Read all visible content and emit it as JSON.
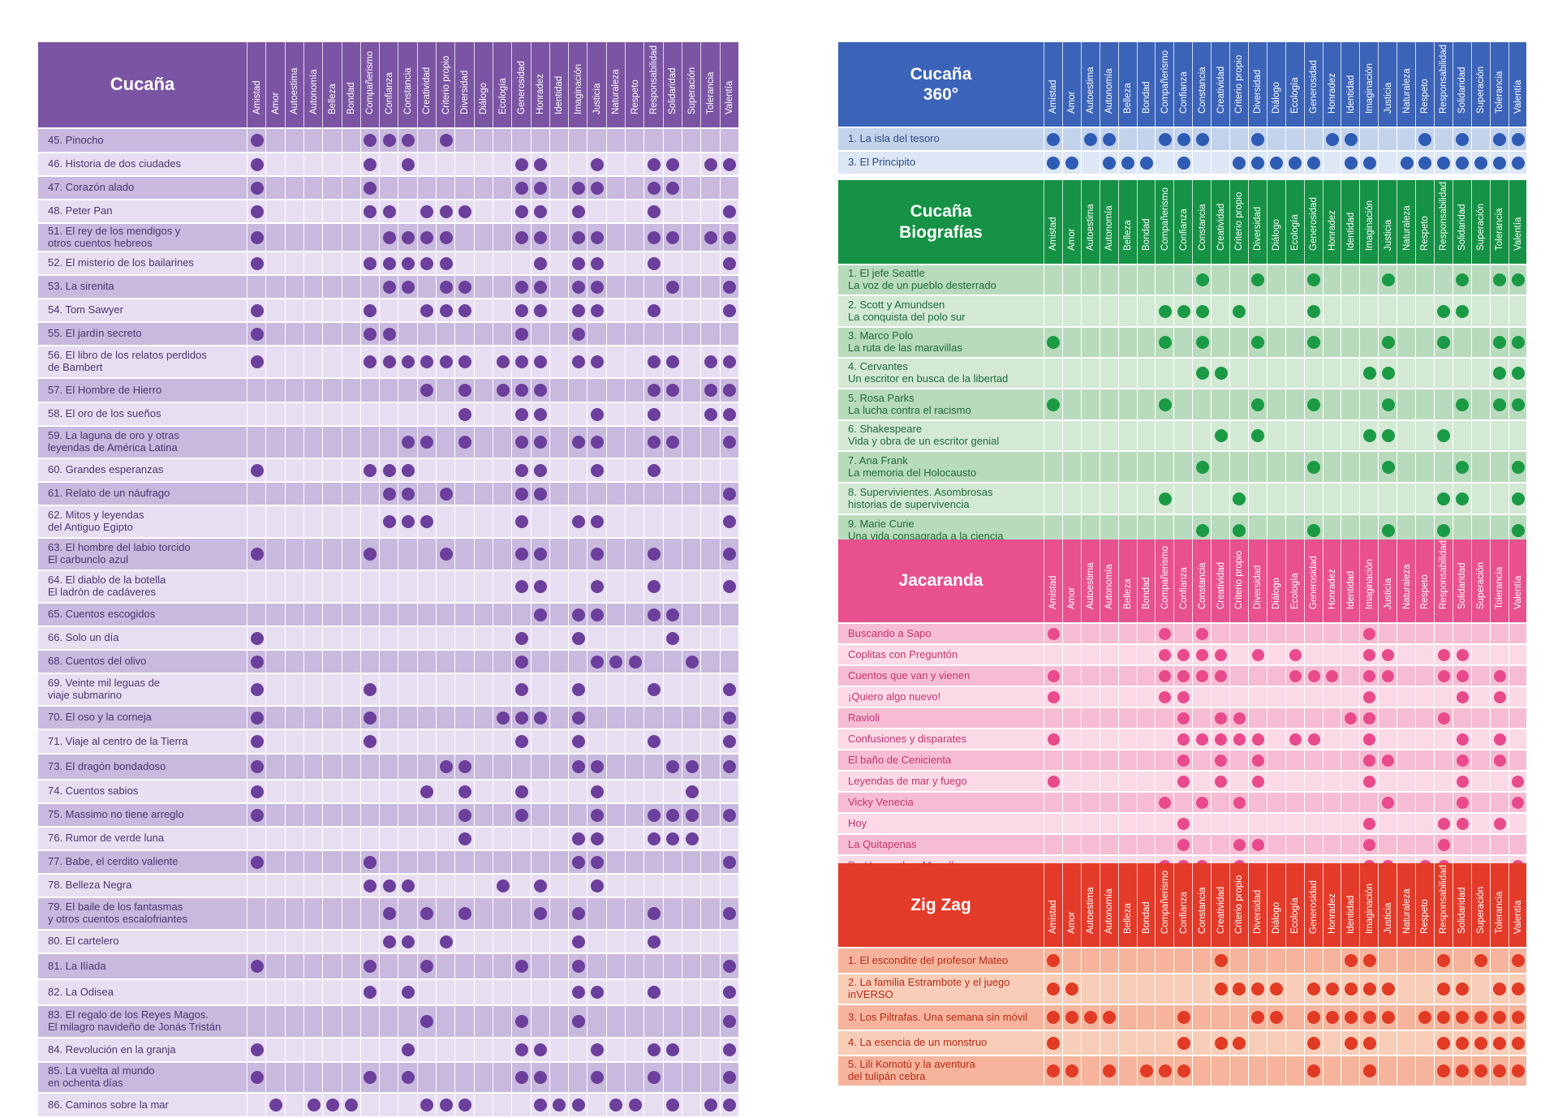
{
  "columns": [
    "Amistad",
    "Amor",
    "Autoestima",
    "Autonomía",
    "Belleza",
    "Bondad",
    "Compañerismo",
    "Confianza",
    "Constancia",
    "Creatividad",
    "Criterio propio",
    "Diversidad",
    "Diálogo",
    "Ecología",
    "Generosidad",
    "Honradez",
    "Identidad",
    "Imaginación",
    "Justicia",
    "Naturaleza",
    "Respeto",
    "Responsabilidad",
    "Solidaridad",
    "Superación",
    "Tolerancia",
    "Valentía"
  ],
  "tables": [
    {
      "id": "cucana",
      "title": "Cucaña",
      "colors": {
        "header": "#7b55a3",
        "dot": "#6b3f9b",
        "text": "#4a3470",
        "row_a": "#c9b9de",
        "row_b": "#e8def2"
      },
      "rows": [
        {
          "lines": [
            "45. Pinocho"
          ],
          "marks": "10000011101000000000000000"
        },
        {
          "lines": [
            "46. Historia de dos ciudades"
          ],
          "marks": "10000010100000110010011011"
        },
        {
          "lines": [
            "47. Corazón alado"
          ],
          "marks": "10000010000000110110011000"
        },
        {
          "lines": [
            "48. Peter Pan"
          ],
          "marks": "10000011011100110100010001"
        },
        {
          "lines": [
            "51. El rey de los mendigos y",
            "otros cuentos hebreos"
          ],
          "marks": "10000001111000110110011011"
        },
        {
          "lines": [
            "52. El misterio de los bailarines"
          ],
          "marks": "10000011111000010110010001"
        },
        {
          "lines": [
            "53. La sirenita"
          ],
          "marks": "00000001101100110110001001"
        },
        {
          "lines": [
            "54. Tom Sawyer"
          ],
          "marks": "10000010011100110110010001"
        },
        {
          "lines": [
            "55. El jardín secreto"
          ],
          "marks": "10000011000000100100000000"
        },
        {
          "lines": [
            "56. El libro de los relatos perdidos",
            "de Bambert"
          ],
          "marks": "10000011111101110110011011"
        },
        {
          "lines": [
            "57. El Hombre de Hierro"
          ],
          "marks": "00000000010101110000011011"
        },
        {
          "lines": [
            "58. El oro de los sueños"
          ],
          "marks": "00000000000100110010010011"
        },
        {
          "lines": [
            "59. La laguna de oro y otras",
            "leyendas de América Latina"
          ],
          "marks": "00000000110100110110011001"
        },
        {
          "lines": [
            "60. Grandes esperanzas"
          ],
          "marks": "10000011100000110010010000"
        },
        {
          "lines": [
            "61. Relato de un náufrago"
          ],
          "marks": "00000001101000110000000001"
        },
        {
          "lines": [
            "62. Mitos y leyendas",
            "del Antiguo Egipto"
          ],
          "marks": "00000001110000100110000001"
        },
        {
          "lines": [
            "63. El hombre del labio torcido",
            "El carbunclo azul"
          ],
          "marks": "10000010001000110010010001"
        },
        {
          "lines": [
            "64. El diablo de la botella",
            "El ladrón de cadáveres"
          ],
          "marks": "00000000000000110010010001"
        },
        {
          "lines": [
            "65. Cuentos escogidos"
          ],
          "marks": "00000000000000010110011000"
        },
        {
          "lines": [
            "66. Solo un día"
          ],
          "marks": "10000000000000100100001000"
        },
        {
          "lines": [
            "68. Cuentos del olivo"
          ],
          "marks": "10000000000000100011100100"
        },
        {
          "lines": [
            "69. Veinte mil leguas de",
            "viaje submarino"
          ],
          "marks": "10000010000000100100010001"
        },
        {
          "lines": [
            "70. El oso y la corneja"
          ],
          "marks": "10000010000001110100000001"
        },
        {
          "lines": [
            "71. Viaje al centro de la Tierra"
          ],
          "marks": "10000010000000100100010001"
        },
        {
          "lines": [
            "73. El dragón bondadoso"
          ],
          "marks": "10000000001100000110001101"
        },
        {
          "lines": [
            "74. Cuentos sabios"
          ],
          "marks": "10000000010100100010000100"
        },
        {
          "lines": [
            "75. Massimo no tiene arreglo"
          ],
          "marks": "10000000000100100010011101"
        },
        {
          "lines": [
            "76. Rumor de verde luna"
          ],
          "marks": "00000000000100000110011100"
        },
        {
          "lines": [
            "77. Babe, el cerdito valiente"
          ],
          "marks": "10000010000000000110000001"
        },
        {
          "lines": [
            "78. Belleza Negra"
          ],
          "marks": "00000011100001010010000000"
        },
        {
          "lines": [
            "79. El baile de los fantasmas",
            "y otros cuentos escalofriantes"
          ],
          "marks": "00000001010100010100010001"
        },
        {
          "lines": [
            "80. El cartelero"
          ],
          "marks": "00000001101000000100010000"
        },
        {
          "lines": [
            "81. La Ilíada"
          ],
          "marks": "10000010010000100100000001"
        },
        {
          "lines": [
            "82. La Odisea"
          ],
          "marks": "00000010100000000110010001"
        },
        {
          "lines": [
            "83. El regalo de los Reyes Magos.",
            "El milagro navideño de Jonás Tristán"
          ],
          "marks": "00000000010000100100000001"
        },
        {
          "lines": [
            "84. Revolución en la granja"
          ],
          "marks": "10000000100000110010011001"
        },
        {
          "lines": [
            "85. La vuelta al mundo",
            "en ochenta días"
          ],
          "marks": "10000010100000110010010001"
        },
        {
          "lines": [
            "86. Caminos sobre la mar"
          ],
          "marks": "01011100011100011101101011"
        }
      ]
    },
    {
      "id": "cucana360",
      "title": "Cucaña\n360°",
      "colors": {
        "header": "#3b63b8",
        "dot": "#2e5bb3",
        "text": "#2b4a86",
        "row_a": "#c3d3ec",
        "row_b": "#dde7f5"
      },
      "rows": [
        {
          "lines": [
            "1. La isla del tesoro"
          ],
          "marks": "10110011100100011000101011"
        },
        {
          "lines": [
            "3. El Principito"
          ],
          "marks": "11011101001111101101111111"
        }
      ]
    },
    {
      "id": "biografias",
      "title": "Cucaña\nBiografías",
      "colors": {
        "header": "#159245",
        "dot": "#1a9a45",
        "text": "#1e6b38",
        "row_a": "#b9dbbd",
        "row_b": "#d3e9d4"
      },
      "rows": [
        {
          "lines": [
            "1. El jefe Seattle",
            "La voz de un pueblo desterrado"
          ],
          "marks": "00000000100100100010001011"
        },
        {
          "lines": [
            "2. Scott y Amundsen",
            "La conquista del polo sur"
          ],
          "marks": "00000011101000100000011000"
        },
        {
          "lines": [
            "3. Marco Polo",
            "La ruta de las maravillas"
          ],
          "marks": "10000010100100100010010011"
        },
        {
          "lines": [
            "4. Cervantes",
            "Un escritor en busca de la libertad"
          ],
          "marks": "00000000110000000110000011"
        },
        {
          "lines": [
            "5. Rosa Parks",
            "La lucha contra el racismo"
          ],
          "marks": "10000010000100100010001011"
        },
        {
          "lines": [
            "6. Shakespeare",
            "Vida y obra de un escritor genial"
          ],
          "marks": "00000000010100000110010000"
        },
        {
          "lines": [
            "7. Ana Frank",
            "La memoria del Holocausto"
          ],
          "marks": "00000000100000100010001001"
        },
        {
          "lines": [
            "8. Supervivientes. Asombrosas",
            "historias de supervivencia"
          ],
          "marks": "00000010001000000000011001"
        },
        {
          "lines": [
            "9. Marie Curie",
            "Una vida consagrada a la ciencia"
          ],
          "marks": "00000000101000100010010001"
        }
      ]
    },
    {
      "id": "jacaranda",
      "title": "Jacaranda",
      "colors": {
        "header": "#e8508e",
        "dot": "#e84a8c",
        "text": "#c23572",
        "row_a": "#f6bcd3",
        "row_b": "#fbd9e6"
      },
      "rows": [
        {
          "lines": [
            "Buscando a Sapo"
          ],
          "marks": "10000010100000000100000000"
        },
        {
          "lines": [
            "Coplitas con Preguntón"
          ],
          "marks": "00000011110101000110011000"
        },
        {
          "lines": [
            "Cuentos que van y vienen"
          ],
          "marks": "10000011110001110110011010"
        },
        {
          "lines": [
            "¡Quiero algo nuevo!"
          ],
          "marks": "10000011000000000100001010"
        },
        {
          "lines": [
            "Ravioli"
          ],
          "marks": "00000001011000001100010000"
        },
        {
          "lines": [
            "Confusiones y disparates"
          ],
          "marks": "10000001111101100100001010"
        },
        {
          "lines": [
            "El baño de Cenicienta"
          ],
          "marks": "00000001010100000110001010"
        },
        {
          "lines": [
            "Leyendas de mar y fuego"
          ],
          "marks": "10000001010100000100001001"
        },
        {
          "lines": [
            "Vicky Venecia"
          ],
          "marks": "00000010101000000010001001"
        },
        {
          "lines": [
            "Hoy"
          ],
          "marks": "00000001000000000100011010"
        },
        {
          "lines": [
            "La Quitapenas"
          ],
          "marks": "00000001001100000100010000"
        },
        {
          "lines": [
            "De Hernando a Magallanes"
          ],
          "marks": "00000011101000000110110001"
        }
      ]
    },
    {
      "id": "zigzag",
      "title": "Zig Zag",
      "colors": {
        "header": "#e33a29",
        "dot": "#e13a25",
        "text": "#b82a18",
        "row_a": "#f5b49b",
        "row_b": "#f8cdb8"
      },
      "rows": [
        {
          "lines": [
            "1. El escondite del profesor Mateo"
          ],
          "marks": "10000000010000001100010101"
        },
        {
          "lines": [
            "2. La familia Estrambote y el juego",
            "inVERSO"
          ],
          "marks": "11000000011110111110011011"
        },
        {
          "lines": [
            "3. Los Piltrafas. Una semana sin móvil"
          ],
          "marks": "11110001000110111110111111"
        },
        {
          "lines": [
            "4. La esencia de un monstruo"
          ],
          "marks": "10000001011000101100011111"
        },
        {
          "lines": [
            "5. Lili Komotú y la aventura",
            "del tulipán cebra"
          ],
          "marks": "11010111000000100100011111"
        }
      ]
    }
  ]
}
